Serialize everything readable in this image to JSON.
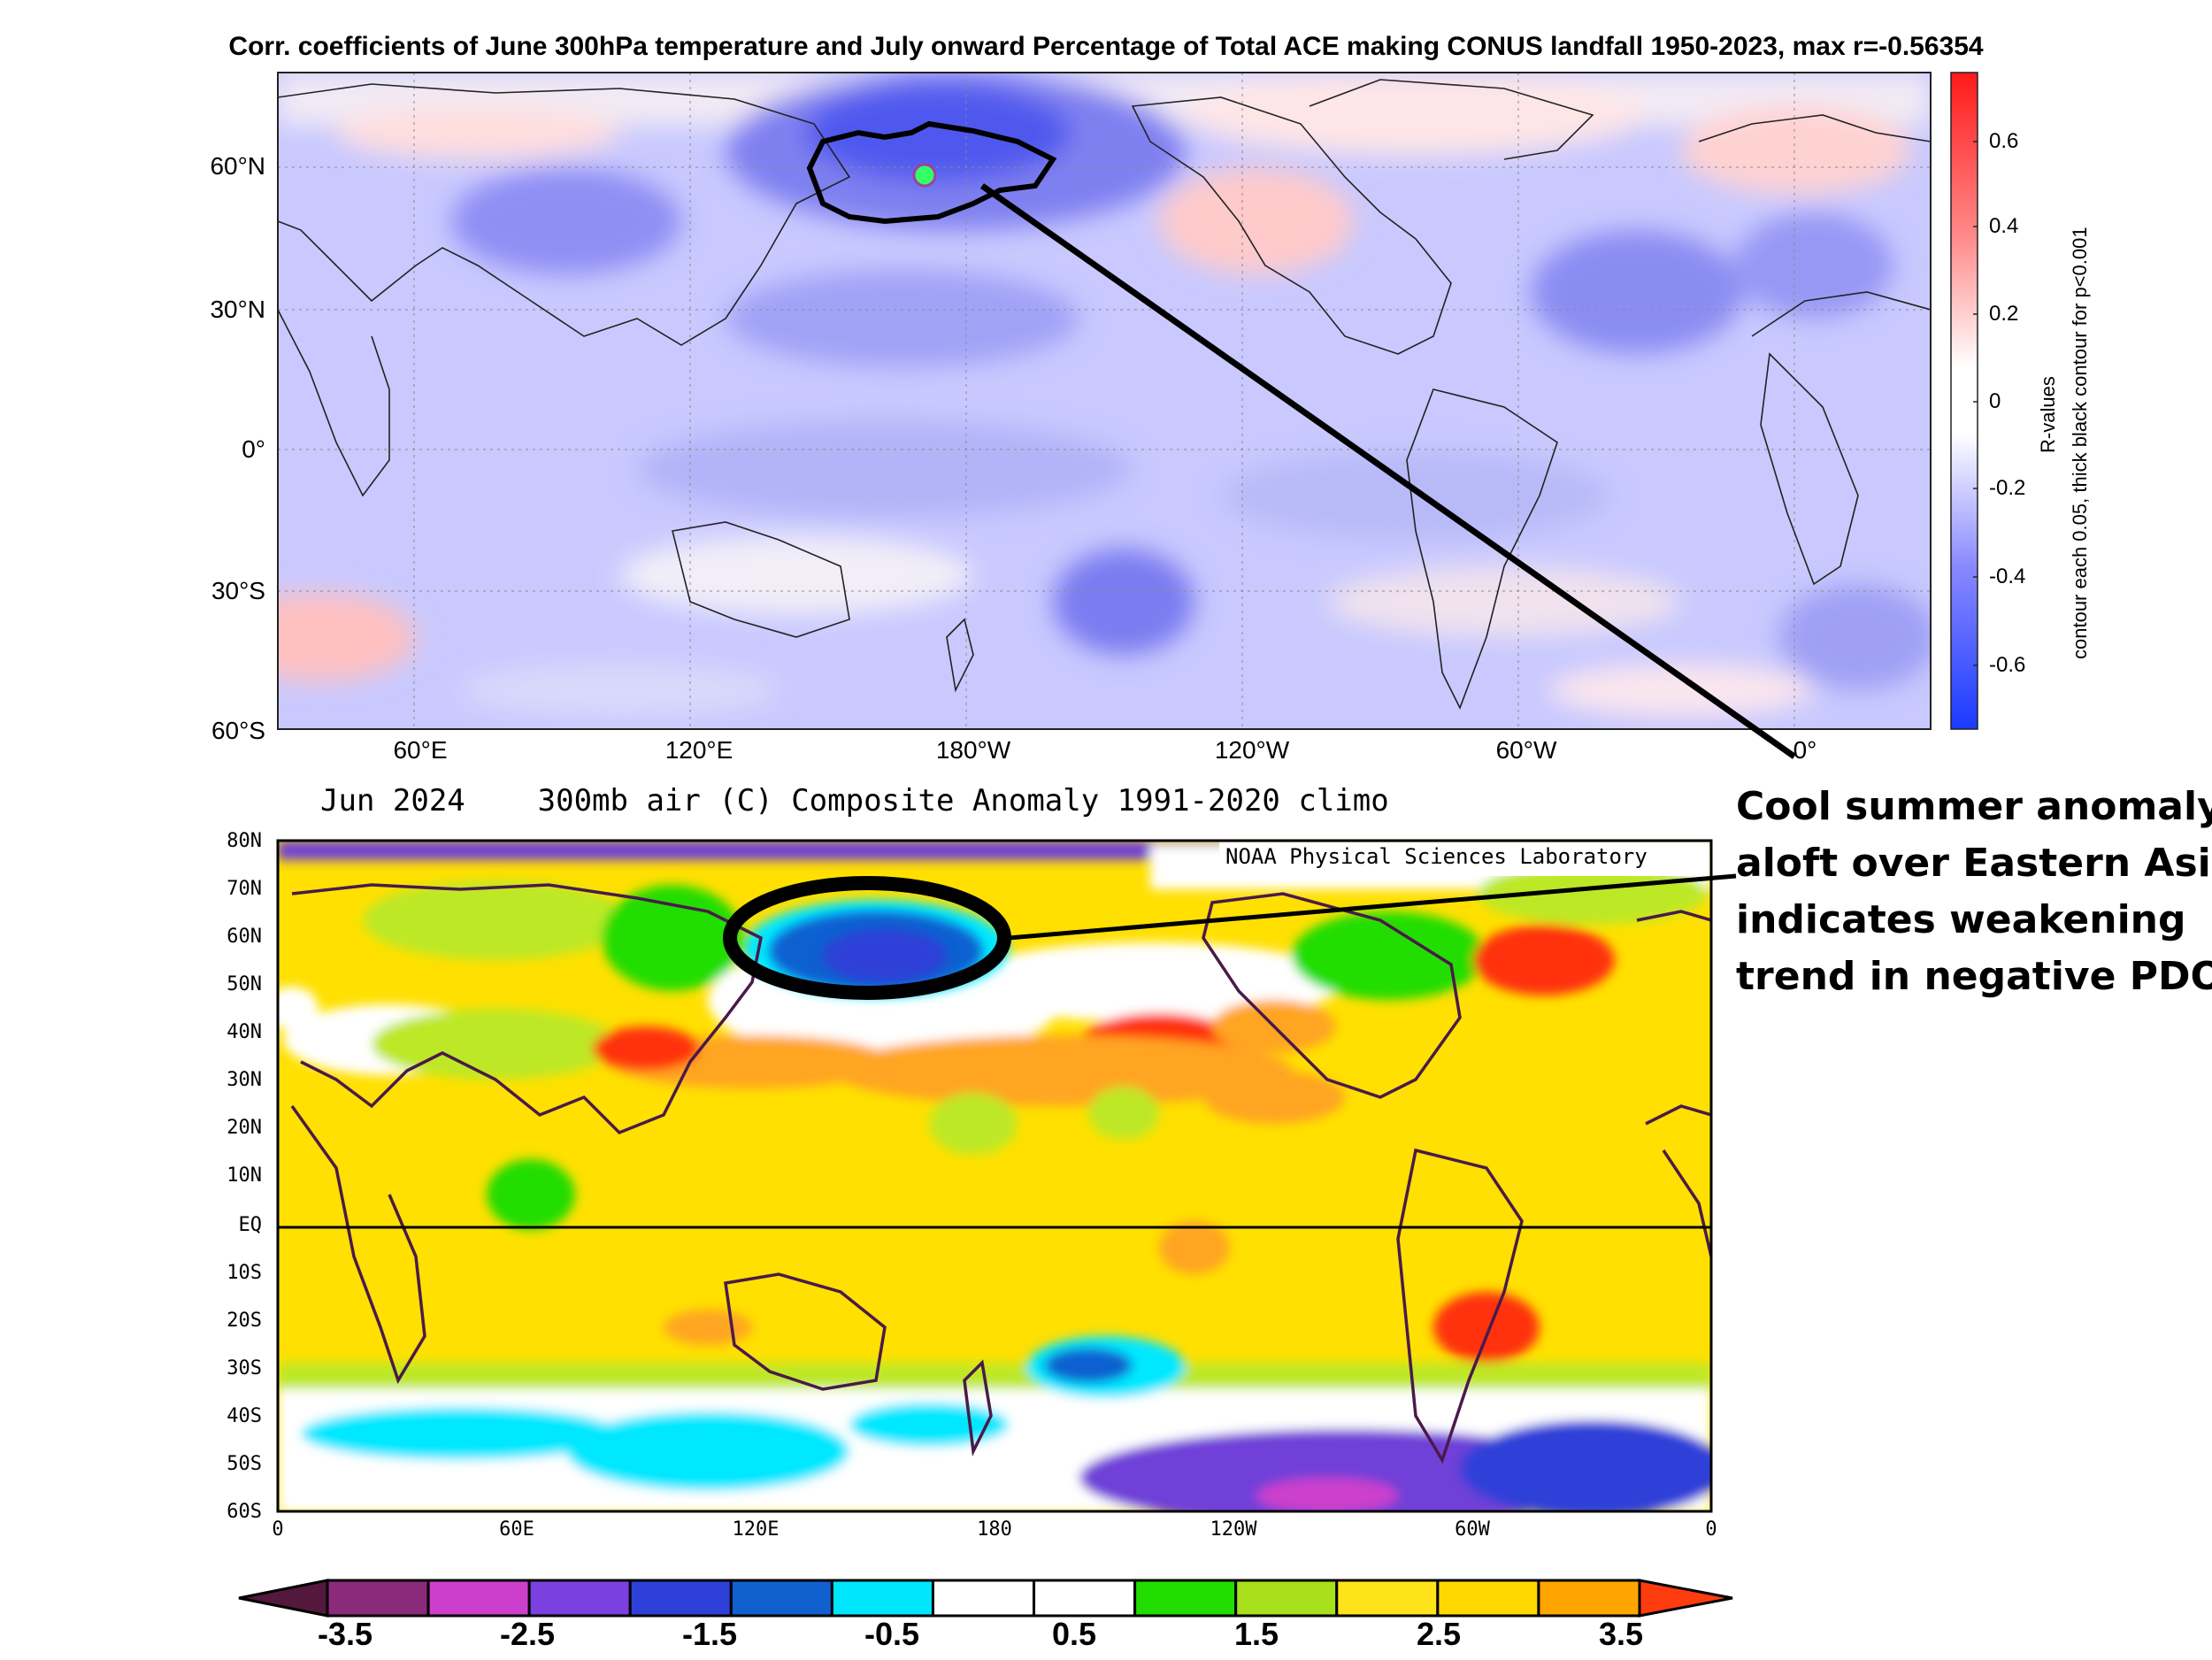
{
  "top_panel": {
    "title": "Corr. coefficients of June 300hPa temperature and July onward Percentage of Total ACE making CONUS landfall 1950-2023, max r=-0.56354",
    "lat_labels": [
      "60°N",
      "30°N",
      "0°",
      "30°S",
      "60°S"
    ],
    "lon_labels": [
      "60°E",
      "120°E",
      "180°W",
      "120°W",
      "60°W",
      "0°"
    ],
    "colorbar_ticks": [
      "0.6",
      "0.4",
      "0.2",
      "0",
      "-0.2",
      "-0.4",
      "-0.6"
    ],
    "colorbar_label_1": "R-values",
    "colorbar_label_2": "contour each 0.05, thick black contour for p<0.001",
    "colors": {
      "negative": "#2a3cff",
      "positive": "#ff2020",
      "marker": "#33ff66"
    }
  },
  "bottom_panel": {
    "title": "Jun 2024    300mb air (C) Composite Anomaly 1991-2020 climo",
    "credit": "NOAA Physical Sciences Laboratory",
    "lat_labels": [
      "80N",
      "70N",
      "60N",
      "50N",
      "40N",
      "30N",
      "20N",
      "10N",
      "EQ",
      "10S",
      "20S",
      "30S",
      "40S",
      "50S",
      "60S"
    ],
    "lon_labels": [
      "0",
      "60E",
      "120E",
      "180",
      "120W",
      "60W",
      "0"
    ],
    "colorbar_labels": [
      "-3.5",
      "-2.5",
      "-1.5",
      "-0.5",
      "0.5",
      "1.5",
      "2.5",
      "3.5"
    ],
    "colorbar_colors": [
      "#54183c",
      "#8b2a7a",
      "#cc3fcc",
      "#7c40e0",
      "#2f40d8",
      "#1060d0",
      "#00e6ff",
      "#ffffff",
      "#ffffff",
      "#22dd00",
      "#a8e01c",
      "#ffe31a",
      "#ffd800",
      "#ffa500",
      "#ff3b10"
    ],
    "colors": {
      "positive_main": "#ffe000",
      "warm": "#ffa020",
      "hot": "#ff3010",
      "cool": "#bde826",
      "green": "#22dd00",
      "cyan": "#00e8ff",
      "blue": "#1060d0",
      "purple": "#7040d8"
    }
  },
  "annotation": {
    "lines": [
      "Cool summer anomaly",
      "aloft over Eastern Asia",
      "indicates weakening",
      "trend in negative PDO"
    ]
  },
  "chart_data": [
    {
      "type": "heatmap",
      "title": "Corr. coefficients of June 300hPa temperature and July onward Percentage of Total ACE making CONUS landfall 1950-2023, max r=-0.56354",
      "colorbar_range": [
        -0.75,
        0.75
      ],
      "max_r": -0.56354,
      "xlabel": "",
      "ylabel": ""
    },
    {
      "type": "heatmap",
      "title": "Jun 2024 300mb air (C) Composite Anomaly 1991-2020 climo",
      "colorbar_range": [
        -3.5,
        3.5
      ],
      "xlabel": "",
      "ylabel": ""
    }
  ]
}
